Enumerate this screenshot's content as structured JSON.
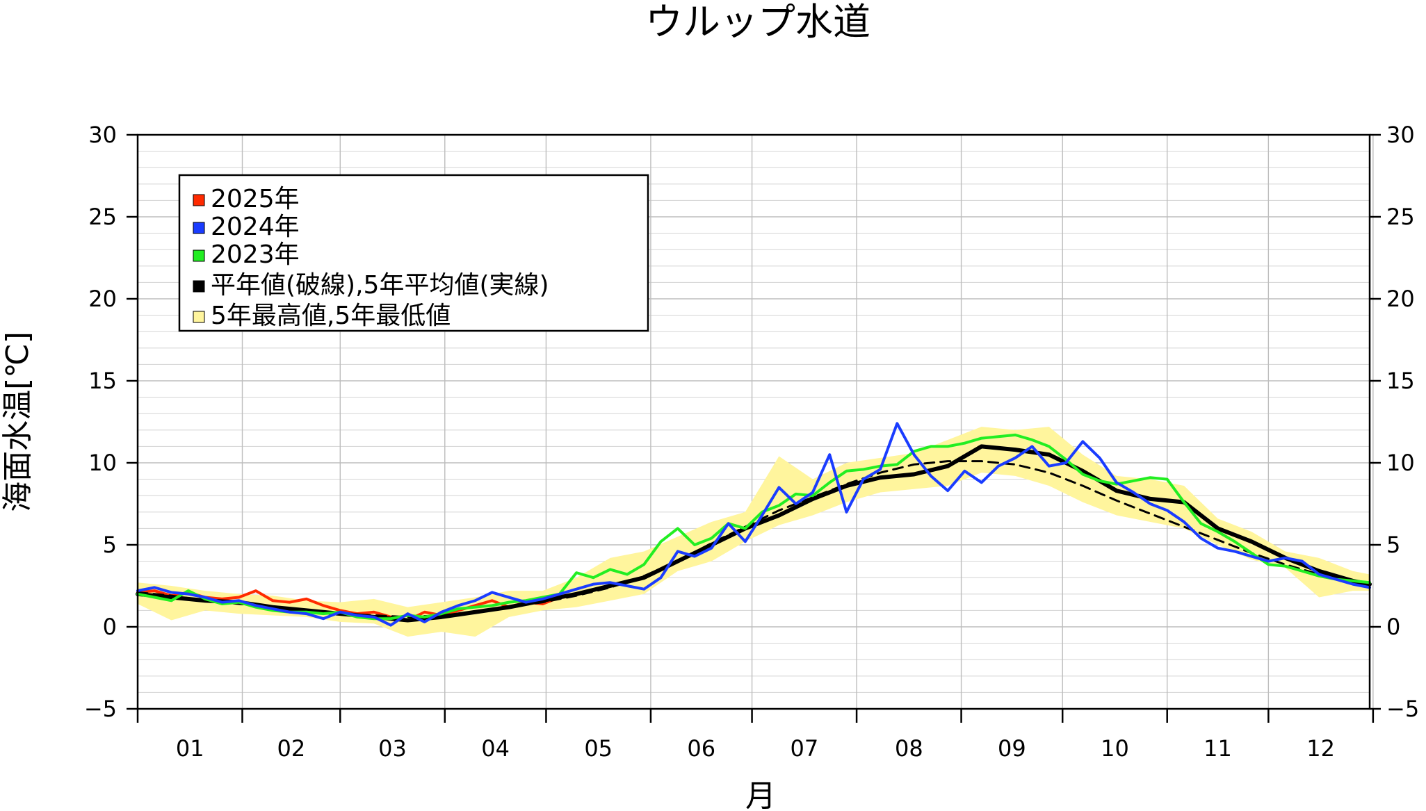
{
  "chart_data": {
    "type": "line",
    "title": "ウルップ水道",
    "xlabel": "月",
    "ylabel": "海面水温[℃]",
    "x_unit": "day_of_year",
    "xlim": [
      1,
      366
    ],
    "ylim": [
      -5,
      30
    ],
    "yticks": [
      -5,
      0,
      5,
      10,
      15,
      20,
      25,
      30
    ],
    "yticklabels": [
      "−5",
      "0",
      "5",
      "10",
      "15",
      "20",
      "25",
      "30"
    ],
    "month_ticks": [
      1,
      32,
      61,
      92,
      122,
      153,
      183,
      214,
      245,
      275,
      306,
      336,
      367
    ],
    "month_labels": [
      "01",
      "02",
      "03",
      "04",
      "05",
      "06",
      "07",
      "08",
      "09",
      "10",
      "11",
      "12"
    ],
    "grid": true,
    "legend_position": "top-left",
    "legend": [
      {
        "label": "2025年",
        "color": "#ff2a00"
      },
      {
        "label": "2024年",
        "color": "#1a3cff"
      },
      {
        "label": "2023年",
        "color": "#22ee22"
      },
      {
        "label": "平年値(破線),5年平均値(実線)",
        "color": "#000000"
      },
      {
        "label": "5年最高値,5年最低値",
        "color": "#fff59d"
      }
    ],
    "series": [
      {
        "name": "2025年",
        "color": "#ff2a00",
        "x": [
          1,
          6,
          11,
          16,
          21,
          26,
          31,
          36,
          41,
          46,
          51,
          56,
          61,
          66,
          71,
          76,
          81,
          86,
          91,
          96,
          101,
          106,
          111,
          116,
          121,
          126
        ],
        "y": [
          2.1,
          2.2,
          1.9,
          2.1,
          1.8,
          1.7,
          1.8,
          2.2,
          1.6,
          1.5,
          1.7,
          1.3,
          1.0,
          0.8,
          0.9,
          0.6,
          0.4,
          0.9,
          0.7,
          1.0,
          1.3,
          1.6,
          1.2,
          1.5,
          1.4,
          1.8
        ]
      },
      {
        "name": "2024年",
        "color": "#1a3cff",
        "x": [
          1,
          6,
          11,
          16,
          21,
          26,
          31,
          36,
          41,
          46,
          51,
          56,
          61,
          66,
          71,
          76,
          81,
          86,
          91,
          96,
          101,
          106,
          111,
          116,
          121,
          126,
          131,
          136,
          141,
          146,
          151,
          156,
          161,
          166,
          171,
          176,
          181,
          186,
          191,
          196,
          201,
          206,
          211,
          216,
          221,
          226,
          231,
          236,
          241,
          246,
          251,
          256,
          261,
          266,
          271,
          276,
          281,
          286,
          291,
          296,
          301,
          306,
          311,
          316,
          321,
          326,
          331,
          336,
          341,
          346,
          351,
          356,
          361,
          366
        ],
        "y": [
          2.2,
          2.4,
          2.1,
          2.0,
          1.8,
          1.5,
          1.6,
          1.3,
          1.1,
          0.9,
          0.8,
          0.5,
          0.9,
          0.7,
          0.6,
          0.1,
          0.8,
          0.3,
          0.9,
          1.3,
          1.6,
          2.1,
          1.8,
          1.5,
          1.7,
          2.0,
          2.3,
          2.6,
          2.7,
          2.5,
          2.3,
          3.0,
          4.6,
          4.3,
          4.8,
          6.3,
          5.2,
          6.8,
          8.5,
          7.5,
          8.2,
          10.5,
          7.0,
          9.0,
          9.6,
          12.4,
          10.5,
          9.2,
          8.3,
          9.5,
          8.8,
          9.8,
          10.3,
          11.0,
          9.8,
          10.0,
          11.3,
          10.3,
          8.8,
          8.2,
          7.5,
          7.1,
          6.4,
          5.4,
          4.8,
          4.6,
          4.3,
          4.0,
          4.2,
          4.0,
          3.2,
          2.9,
          2.6,
          2.4
        ]
      },
      {
        "name": "2023年",
        "color": "#22ee22",
        "x": [
          1,
          6,
          11,
          16,
          21,
          26,
          31,
          36,
          41,
          46,
          51,
          56,
          61,
          66,
          71,
          76,
          81,
          86,
          91,
          96,
          101,
          106,
          111,
          116,
          121,
          126,
          131,
          136,
          141,
          146,
          151,
          156,
          161,
          166,
          171,
          176,
          181,
          186,
          191,
          196,
          201,
          206,
          211,
          216,
          221,
          226,
          231,
          236,
          241,
          246,
          251,
          256,
          261,
          266,
          271,
          276,
          281,
          286,
          291,
          296,
          301,
          306,
          311,
          316,
          321,
          326,
          331,
          336,
          341,
          346,
          351,
          356,
          361,
          366
        ],
        "y": [
          2.0,
          1.8,
          1.6,
          2.2,
          1.7,
          1.4,
          1.5,
          1.2,
          1.0,
          0.9,
          0.9,
          0.8,
          0.9,
          0.6,
          0.5,
          0.5,
          0.7,
          0.6,
          0.8,
          1.1,
          1.2,
          1.3,
          1.5,
          1.6,
          1.8,
          2.0,
          3.3,
          3.0,
          3.5,
          3.2,
          3.8,
          5.2,
          6.0,
          5.0,
          5.4,
          6.3,
          6.0,
          7.0,
          7.4,
          8.1,
          8.0,
          8.8,
          9.5,
          9.6,
          9.8,
          9.9,
          10.7,
          11.0,
          11.0,
          11.2,
          11.5,
          11.6,
          11.7,
          11.4,
          11.0,
          10.2,
          9.3,
          8.9,
          8.7,
          8.9,
          9.1,
          9.0,
          7.6,
          6.3,
          5.8,
          5.2,
          4.5,
          3.8,
          3.7,
          3.4,
          3.1,
          2.9,
          2.8,
          2.7
        ]
      },
      {
        "name": "5年平均値",
        "color": "#000000",
        "x": [
          1,
          11,
          21,
          31,
          41,
          51,
          61,
          71,
          81,
          91,
          101,
          111,
          121,
          131,
          141,
          151,
          161,
          171,
          181,
          191,
          201,
          211,
          221,
          231,
          241,
          251,
          261,
          271,
          281,
          291,
          301,
          311,
          321,
          331,
          341,
          351,
          361,
          366
        ],
        "y": [
          2.0,
          1.8,
          1.6,
          1.5,
          1.2,
          1.0,
          0.8,
          0.6,
          0.4,
          0.6,
          0.9,
          1.2,
          1.6,
          2.0,
          2.5,
          3.0,
          4.0,
          5.0,
          6.0,
          6.8,
          7.8,
          8.6,
          9.1,
          9.3,
          9.8,
          11.0,
          10.8,
          10.5,
          9.5,
          8.3,
          7.8,
          7.6,
          6.0,
          5.2,
          4.2,
          3.4,
          2.8,
          2.6
        ]
      },
      {
        "name": "平年値",
        "color": "#000000",
        "dashed": true,
        "x": [
          1,
          11,
          21,
          31,
          41,
          51,
          61,
          71,
          81,
          91,
          101,
          111,
          121,
          131,
          141,
          151,
          161,
          171,
          181,
          191,
          201,
          211,
          221,
          231,
          241,
          251,
          261,
          271,
          281,
          291,
          301,
          311,
          321,
          331,
          341,
          351,
          361,
          366
        ],
        "y": [
          2.1,
          1.9,
          1.6,
          1.4,
          1.2,
          1.0,
          0.8,
          0.7,
          0.6,
          0.7,
          0.9,
          1.2,
          1.5,
          1.9,
          2.4,
          3.1,
          4.0,
          5.1,
          6.1,
          7.1,
          7.9,
          8.7,
          9.4,
          9.9,
          10.1,
          10.1,
          9.9,
          9.4,
          8.6,
          7.7,
          6.9,
          6.1,
          5.3,
          4.5,
          3.8,
          3.2,
          2.7,
          2.5
        ]
      }
    ],
    "band": {
      "name": "5年最高値,5年最低値",
      "color": "#fff59d",
      "x": [
        1,
        11,
        21,
        31,
        41,
        51,
        61,
        71,
        81,
        91,
        101,
        111,
        121,
        131,
        141,
        151,
        161,
        171,
        181,
        191,
        201,
        211,
        221,
        231,
        241,
        251,
        261,
        271,
        281,
        291,
        301,
        311,
        321,
        331,
        341,
        351,
        361,
        366
      ],
      "upper": [
        2.7,
        2.5,
        2.2,
        2.0,
        1.9,
        1.6,
        1.5,
        1.7,
        1.2,
        1.5,
        1.8,
        2.2,
        2.2,
        3.0,
        4.2,
        4.6,
        5.5,
        6.4,
        7.0,
        10.4,
        9.0,
        10.0,
        10.3,
        10.6,
        11.4,
        12.2,
        12.0,
        12.2,
        10.5,
        9.2,
        9.0,
        8.6,
        6.6,
        5.8,
        4.6,
        4.2,
        3.4,
        3.2
      ],
      "lower": [
        1.4,
        0.4,
        1.0,
        0.8,
        0.7,
        0.6,
        0.3,
        0.2,
        -0.6,
        -0.3,
        -0.6,
        0.6,
        1.0,
        1.2,
        1.6,
        2.0,
        3.4,
        4.0,
        5.2,
        6.2,
        6.8,
        7.6,
        8.2,
        8.4,
        8.6,
        9.4,
        9.2,
        8.6,
        7.6,
        6.8,
        6.4,
        6.0,
        5.0,
        4.1,
        3.6,
        1.8,
        2.2,
        2.2
      ]
    }
  }
}
